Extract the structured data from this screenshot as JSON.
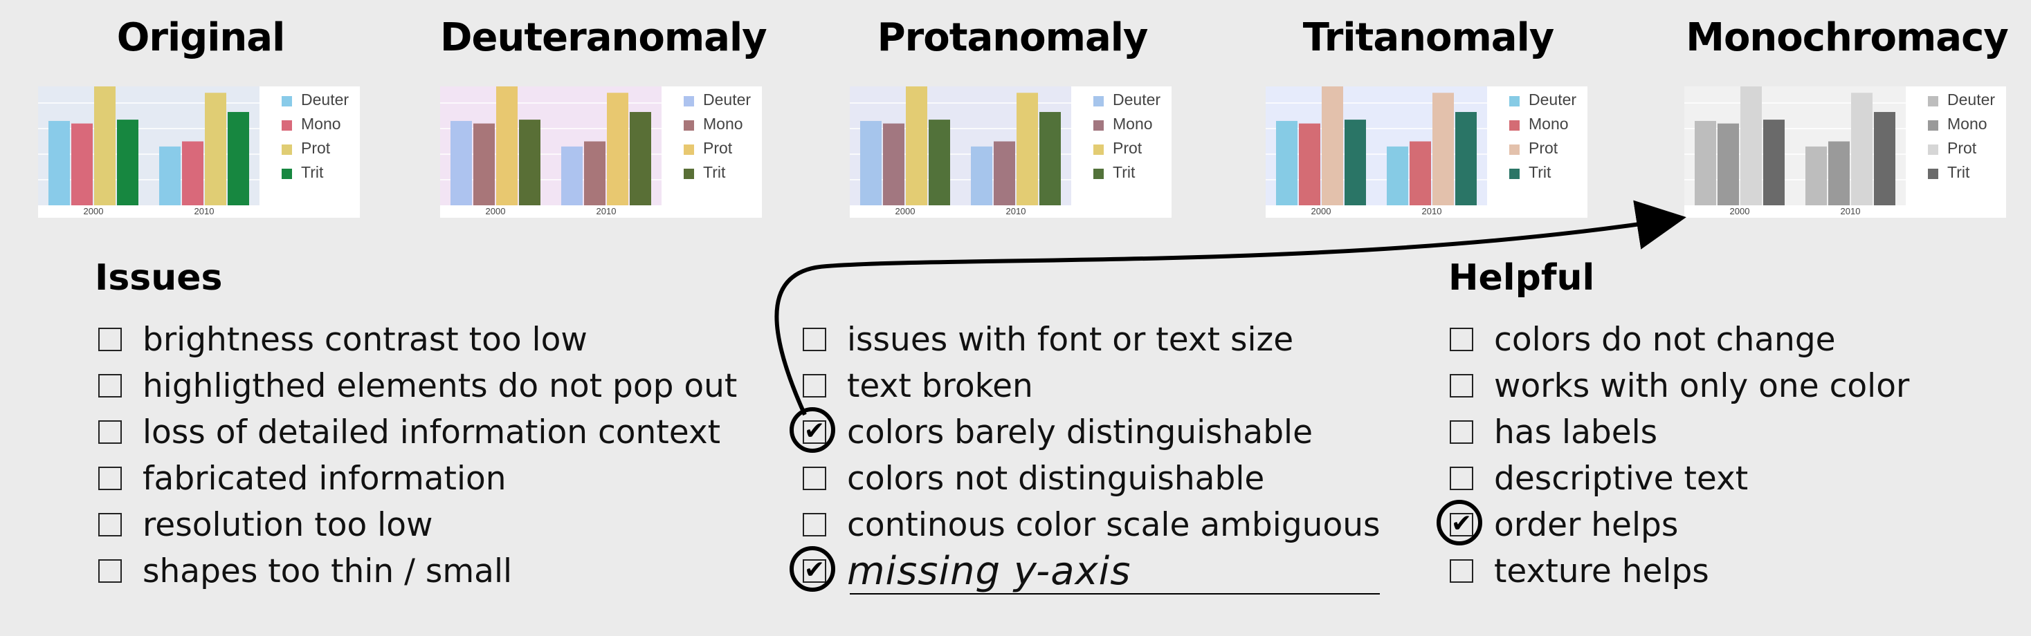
{
  "panels": [
    {
      "title": "Original",
      "colors": {
        "Deuter": "#89cbe9",
        "Mono": "#d9697a",
        "Prot": "#e0cd74",
        "Trit": "#178740"
      },
      "plot_bg": "#e4eaf3"
    },
    {
      "title": "Deuteranomaly",
      "colors": {
        "Deuter": "#adc3ef",
        "Mono": "#a87679",
        "Prot": "#e8c870",
        "Trit": "#596f36"
      },
      "plot_bg": "#f2e4f4"
    },
    {
      "title": "Protanomaly",
      "colors": {
        "Deuter": "#a6c5ec",
        "Mono": "#a27780",
        "Prot": "#e3cc73",
        "Trit": "#52723a"
      },
      "plot_bg": "#e6e8f5"
    },
    {
      "title": "Tritanomaly",
      "colors": {
        "Deuter": "#86cbe5",
        "Mono": "#d46c74",
        "Prot": "#e3c1ac",
        "Trit": "#2a7566"
      },
      "plot_bg": "#e6ebfb"
    },
    {
      "title": "Monochromacy",
      "colors": {
        "Deuter": "#bdbdbd",
        "Mono": "#9a9a9a",
        "Prot": "#d6d6d6",
        "Trit": "#6a6a6a"
      },
      "plot_bg": "#f1f1f1"
    }
  ],
  "chart_data": {
    "type": "bar",
    "categories": [
      "2000",
      "2010"
    ],
    "series": [
      {
        "name": "Deuter",
        "values": [
          6.6,
          4.6
        ]
      },
      {
        "name": "Mono",
        "values": [
          6.4,
          5.0
        ]
      },
      {
        "name": "Prot",
        "values": [
          9.3,
          8.8
        ]
      },
      {
        "name": "Trit",
        "values": [
          6.7,
          7.3
        ]
      }
    ],
    "ylim": [
      0,
      9.3
    ],
    "legend": "right",
    "grid": true,
    "xlabel": "",
    "ylabel": "",
    "title": ""
  },
  "sections": {
    "issues_title": "Issues",
    "helpful_title": "Helpful"
  },
  "issues_col1": [
    {
      "label": "brightness contrast too low",
      "checked": false
    },
    {
      "label": "highligthed elements do not pop out",
      "checked": false
    },
    {
      "label": "loss of detailed information context",
      "checked": false
    },
    {
      "label": "fabricated information",
      "checked": false
    },
    {
      "label": "resolution too low",
      "checked": false
    },
    {
      "label": "shapes too thin / small",
      "checked": false
    }
  ],
  "issues_col2": [
    {
      "label": "issues with font or text size",
      "checked": false
    },
    {
      "label": "text broken",
      "checked": false
    },
    {
      "label": "colors barely distinguishable",
      "checked": true
    },
    {
      "label": "colors not distinguishable",
      "checked": false
    },
    {
      "label": "continous color scale ambiguous",
      "checked": false
    },
    {
      "label": "missing y-axis",
      "checked": true,
      "handwritten": true
    }
  ],
  "helpful": [
    {
      "label": "colors do not change",
      "checked": false
    },
    {
      "label": "works with only one color",
      "checked": false
    },
    {
      "label": "has labels",
      "checked": false
    },
    {
      "label": "descriptive text",
      "checked": false
    },
    {
      "label": "order helps",
      "checked": true
    },
    {
      "label": "texture helps",
      "checked": false
    }
  ],
  "glyphs": {
    "unchecked": "",
    "checked": "✔"
  }
}
